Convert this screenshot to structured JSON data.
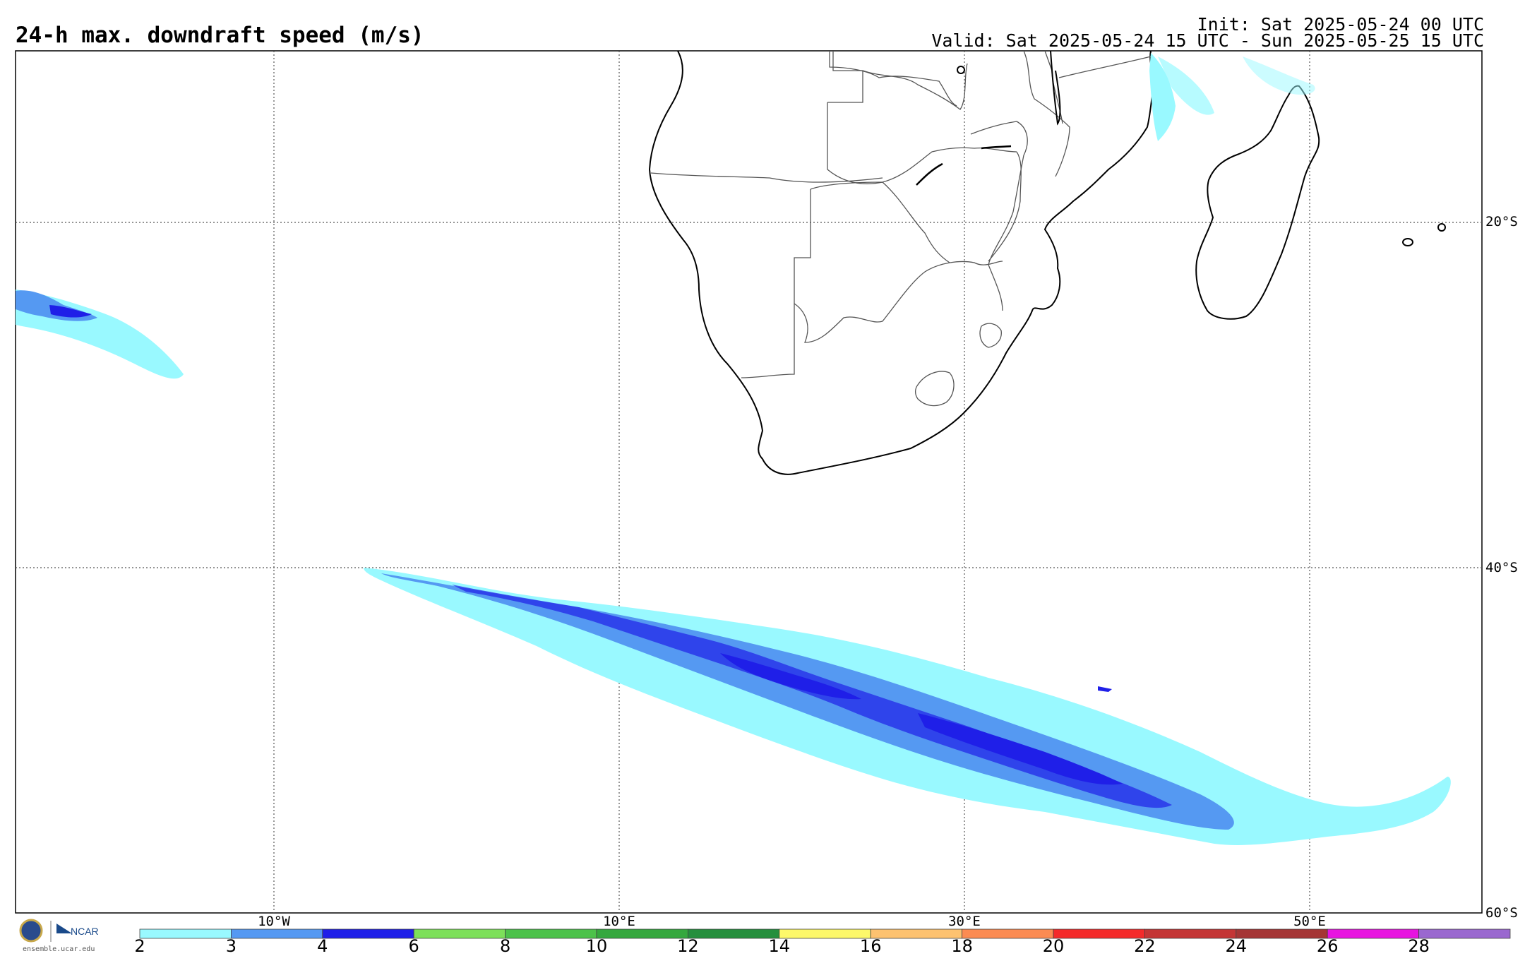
{
  "header": {
    "title": "24-h max. downdraft speed (m/s)",
    "init": "Init: Sat 2025-05-24 00 UTC",
    "valid": "Valid: Sat 2025-05-24 15 UTC - Sun 2025-05-25 15 UTC"
  },
  "map": {
    "lon_labels": [
      "10°W",
      "10°E",
      "30°E",
      "50°E"
    ],
    "lat_labels": [
      "20°S",
      "40°S",
      "60°S"
    ],
    "gridlines": true
  },
  "legend": {
    "ticks": [
      "2",
      "3",
      "4",
      "6",
      "8",
      "10",
      "12",
      "14",
      "16",
      "18",
      "20",
      "22",
      "24",
      "26",
      "28"
    ],
    "colors": [
      "#99f9ff",
      "#5599f2",
      "#1f1fe8",
      "#7de05a",
      "#4cc24a",
      "#35a83e",
      "#258f3d",
      "#fdf86a",
      "#fdc270",
      "#fb8b52",
      "#f42a2a",
      "#c43535",
      "#a53535",
      "#e814e0",
      "#9a68cf"
    ]
  },
  "branding": {
    "logo_text": "NCAR",
    "website": "ensemble.ucar.edu"
  }
}
